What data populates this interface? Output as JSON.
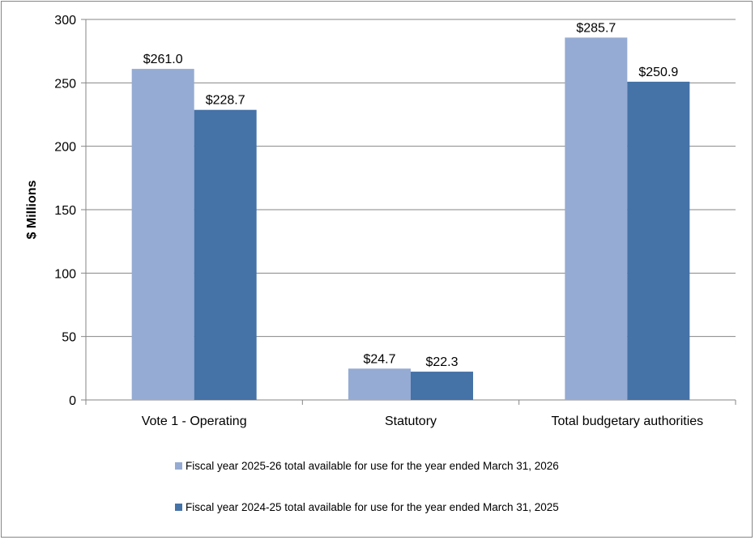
{
  "chart_data": {
    "type": "bar",
    "title": "",
    "xlabel": "",
    "ylabel": "$ Millions",
    "ylim": [
      0,
      300
    ],
    "yticks": [
      0,
      50,
      100,
      150,
      200,
      250,
      300
    ],
    "grid": true,
    "legend_position": "bottom",
    "categories": [
      "Vote 1 - Operating",
      "Statutory",
      "Total budgetary authorities"
    ],
    "series": [
      {
        "name": "Fiscal year 2025-26 total available for use for the year ended March 31, 2026",
        "values": [
          261.0,
          24.7,
          285.7
        ],
        "labels": [
          "$261.0",
          "$24.7",
          "$285.7"
        ],
        "color": "#95abd3"
      },
      {
        "name": "Fiscal year 2024-25 total available for use for the year ended March 31, 2025",
        "values": [
          228.7,
          22.3,
          250.9
        ],
        "labels": [
          "$228.7",
          "$22.3",
          "$250.9"
        ],
        "color": "#4572a7"
      }
    ]
  }
}
